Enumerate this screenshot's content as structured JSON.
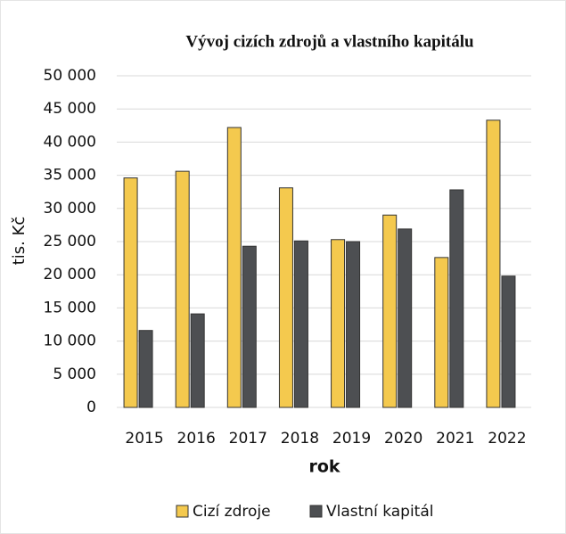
{
  "chart_data": {
    "type": "bar",
    "title": "Vývoj cizích zdrojů a vlastního kapitálu",
    "x_label": "rok",
    "y_label": "tis. Kč",
    "categories": [
      "2015",
      "2016",
      "2017",
      "2018",
      "2019",
      "2020",
      "2021",
      "2022"
    ],
    "series": [
      {
        "name": "Cizí zdroje",
        "color": "#f4c94e",
        "values": [
          34600,
          35600,
          42200,
          33100,
          25300,
          29000,
          22600,
          43300
        ]
      },
      {
        "name": "Vlastní kapitál",
        "color": "#4d4f52",
        "values": [
          11600,
          14100,
          24300,
          25100,
          25000,
          26900,
          32800,
          19800
        ]
      }
    ],
    "ylim": [
      0,
      50000
    ],
    "yticks": [
      0,
      {
        "value": 5000,
        "label": "5 000"
      },
      {
        "value": 10000,
        "label": "10 000"
      },
      {
        "value": 15000,
        "label": "15 000"
      },
      {
        "value": 20000,
        "label": "20 000"
      },
      {
        "value": 25000,
        "label": "25 000"
      },
      {
        "value": 30000,
        "label": "30 000"
      },
      {
        "value": 35000,
        "label": "35 000"
      },
      {
        "value": 40000,
        "label": "40 000"
      },
      {
        "value": 45000,
        "label": "45 000"
      },
      {
        "value": 50000,
        "label": "50 000"
      }
    ],
    "grid": true,
    "legend": "bottom"
  }
}
